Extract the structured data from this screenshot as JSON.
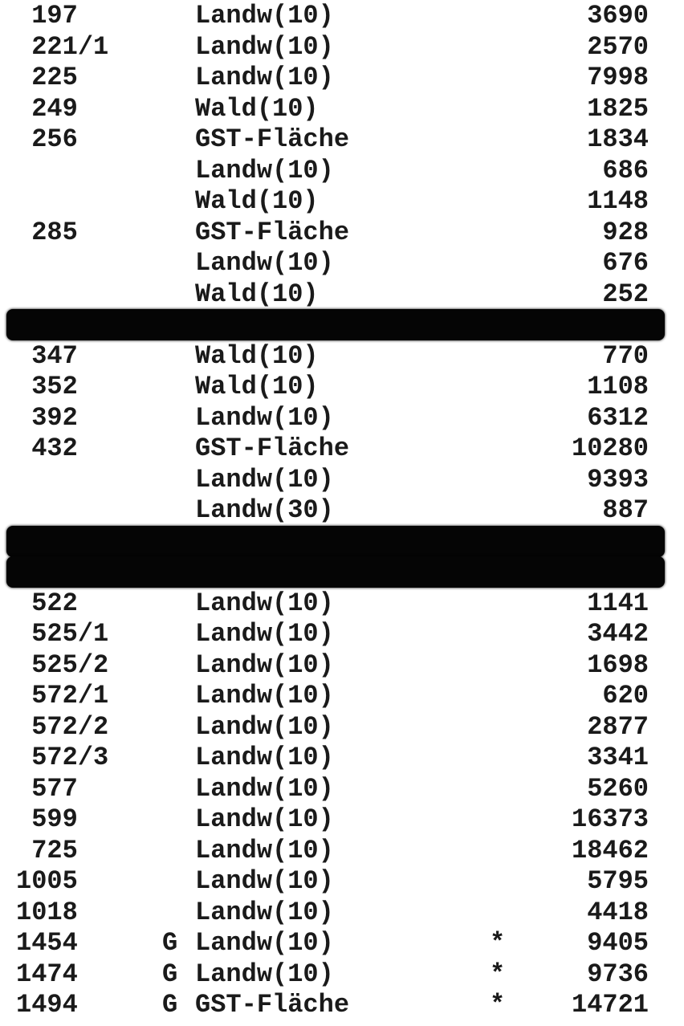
{
  "rows": [
    {
      "nr": "197",
      "flag": "",
      "type": "Landw(10)",
      "star": "",
      "area": "3690"
    },
    {
      "nr": "221/1",
      "flag": "",
      "type": "Landw(10)",
      "star": "",
      "area": "2570"
    },
    {
      "nr": "225",
      "flag": "",
      "type": "Landw(10)",
      "star": "",
      "area": "7998"
    },
    {
      "nr": "249",
      "flag": "",
      "type": "Wald(10)",
      "star": "",
      "area": "1825"
    },
    {
      "nr": "256",
      "flag": "",
      "type": "GST-Fläche",
      "star": "",
      "area": "1834"
    },
    {
      "nr": "",
      "flag": "",
      "type": "Landw(10)",
      "star": "",
      "area": "686"
    },
    {
      "nr": "",
      "flag": "",
      "type": "Wald(10)",
      "star": "",
      "area": "1148"
    },
    {
      "nr": "285",
      "flag": "",
      "type": "GST-Fläche",
      "star": "",
      "area": "928"
    },
    {
      "nr": "",
      "flag": "",
      "type": "Landw(10)",
      "star": "",
      "area": "676"
    },
    {
      "nr": "",
      "flag": "",
      "type": "Wald(10)",
      "star": "",
      "area": "252"
    },
    {
      "redacted": true
    },
    {
      "nr": "347",
      "flag": "",
      "type": "Wald(10)",
      "star": "",
      "area": "770"
    },
    {
      "nr": "352",
      "flag": "",
      "type": "Wald(10)",
      "star": "",
      "area": "1108"
    },
    {
      "nr": "392",
      "flag": "",
      "type": "Landw(10)",
      "star": "",
      "area": "6312"
    },
    {
      "nr": "432",
      "flag": "",
      "type": "GST-Fläche",
      "star": "",
      "area": "10280"
    },
    {
      "nr": "",
      "flag": "",
      "type": "Landw(10)",
      "star": "",
      "area": "9393"
    },
    {
      "nr": "",
      "flag": "",
      "type": "Landw(30)",
      "star": "",
      "area": "887"
    },
    {
      "redacted": true
    },
    {
      "redacted": true
    },
    {
      "nr": "522",
      "flag": "",
      "type": "Landw(10)",
      "star": "",
      "area": "1141"
    },
    {
      "nr": "525/1",
      "flag": "",
      "type": "Landw(10)",
      "star": "",
      "area": "3442"
    },
    {
      "nr": "525/2",
      "flag": "",
      "type": "Landw(10)",
      "star": "",
      "area": "1698"
    },
    {
      "nr": "572/1",
      "flag": "",
      "type": "Landw(10)",
      "star": "",
      "area": "620"
    },
    {
      "nr": "572/2",
      "flag": "",
      "type": "Landw(10)",
      "star": "",
      "area": "2877"
    },
    {
      "nr": "572/3",
      "flag": "",
      "type": "Landw(10)",
      "star": "",
      "area": "3341"
    },
    {
      "nr": "577",
      "flag": "",
      "type": "Landw(10)",
      "star": "",
      "area": "5260"
    },
    {
      "nr": "599",
      "flag": "",
      "type": "Landw(10)",
      "star": "",
      "area": "16373"
    },
    {
      "nr": "725",
      "flag": "",
      "type": "Landw(10)",
      "star": "",
      "area": "18462"
    },
    {
      "nr": "1005",
      "flag": "",
      "type": "Landw(10)",
      "star": "",
      "area": "5795"
    },
    {
      "nr": "1018",
      "flag": "",
      "type": "Landw(10)",
      "star": "",
      "area": "4418"
    },
    {
      "nr": "1454",
      "flag": "G",
      "type": "Landw(10)",
      "star": "*",
      "area": "9405"
    },
    {
      "nr": "1474",
      "flag": "G",
      "type": "Landw(10)",
      "star": "*",
      "area": "9736"
    },
    {
      "nr": "1494",
      "flag": "G",
      "type": "GST-Fläche",
      "star": "*",
      "area": "14721"
    }
  ]
}
